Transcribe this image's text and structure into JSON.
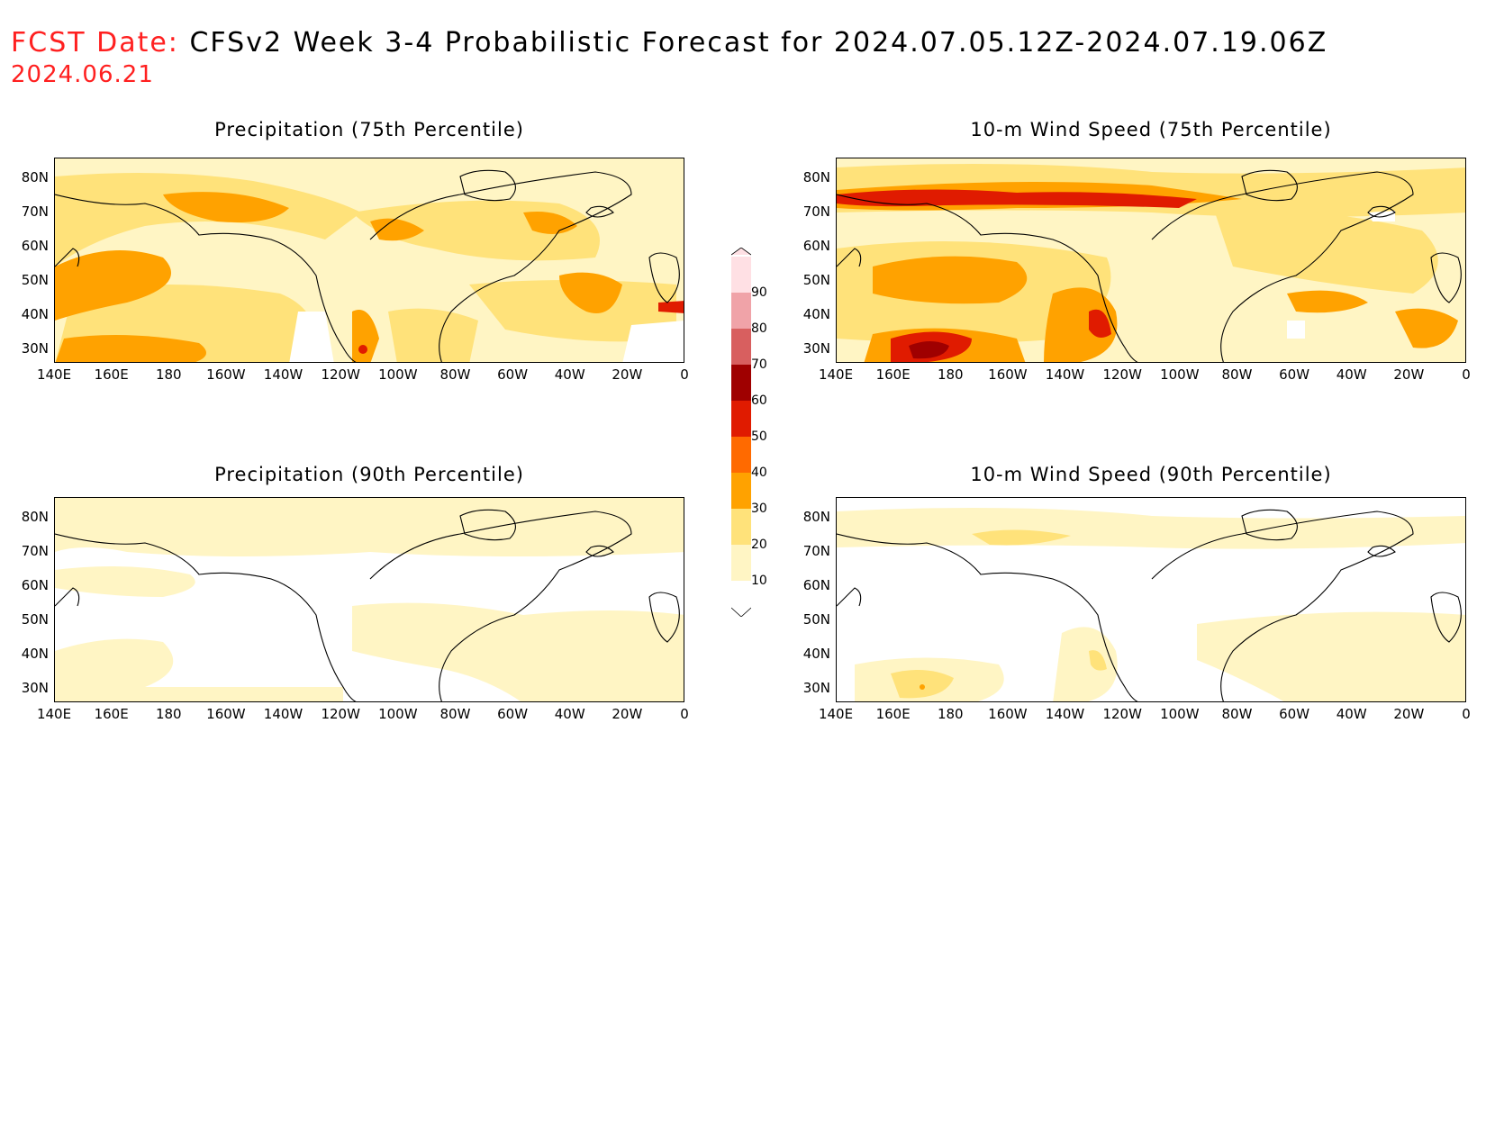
{
  "header": {
    "prefix": "FCST Date:",
    "title": "CFSv2 Week 3-4 Probabilistic Forecast for 2024.07.05.12Z-2024.07.19.06Z",
    "forecast_date": "2024.06.21"
  },
  "panels": [
    {
      "title": "Precipitation (75th Percentile)"
    },
    {
      "title": "10-m Wind Speed (75th Percentile)"
    },
    {
      "title": "Precipitation (90th Percentile)"
    },
    {
      "title": "10-m Wind Speed (90th Percentile)"
    }
  ],
  "axes": {
    "lat_labels": [
      "80N",
      "70N",
      "60N",
      "50N",
      "40N",
      "30N"
    ],
    "lon_labels": [
      "140E",
      "160E",
      "180",
      "160W",
      "140W",
      "120W",
      "100W",
      "80W",
      "60W",
      "40W",
      "20W",
      "0"
    ]
  },
  "colorbar": {
    "levels": [
      "10",
      "20",
      "30",
      "40",
      "50",
      "60",
      "70",
      "80",
      "90"
    ],
    "colors": [
      "#fff5c4",
      "#ffe27a",
      "#ffa200",
      "#ff6a00",
      "#e01b00",
      "#9f0000",
      "#d85f5f",
      "#f0a3a8",
      "#ffe0e4"
    ]
  },
  "colors": {
    "header_prefix": "#ff2020",
    "land_outline": "#000000"
  }
}
